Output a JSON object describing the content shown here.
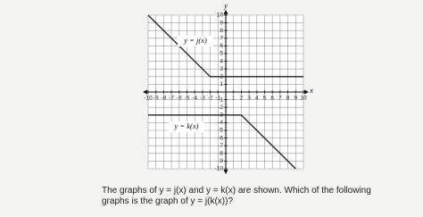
{
  "chart_data": {
    "type": "line",
    "x_label": "x",
    "y_label": "y",
    "xlim": [
      -10,
      10
    ],
    "ylim": [
      -10,
      10
    ],
    "xticks": [
      -10,
      -9,
      -8,
      -7,
      -6,
      -5,
      -4,
      -3,
      -2,
      -1,
      1,
      2,
      3,
      4,
      5,
      6,
      7,
      8,
      9,
      10
    ],
    "yticks": [
      -10,
      -9,
      -8,
      -7,
      -6,
      -5,
      -4,
      -3,
      -2,
      -1,
      1,
      2,
      3,
      4,
      5,
      6,
      7,
      8,
      9,
      10
    ],
    "grid": true,
    "series": [
      {
        "name": "y = j(x)",
        "color": "#222222",
        "x": [
          -10,
          -2,
          10
        ],
        "values": [
          10,
          2,
          2
        ]
      },
      {
        "name": "y = k(x)",
        "color": "#222222",
        "x": [
          -10,
          2,
          9
        ],
        "values": [
          -3,
          -3,
          -10
        ]
      }
    ]
  },
  "question": [
    "The graphs of y = j(x) and y = k(x) are shown. Which of the following",
    "graphs is the graph of y = j(k(x))?"
  ]
}
